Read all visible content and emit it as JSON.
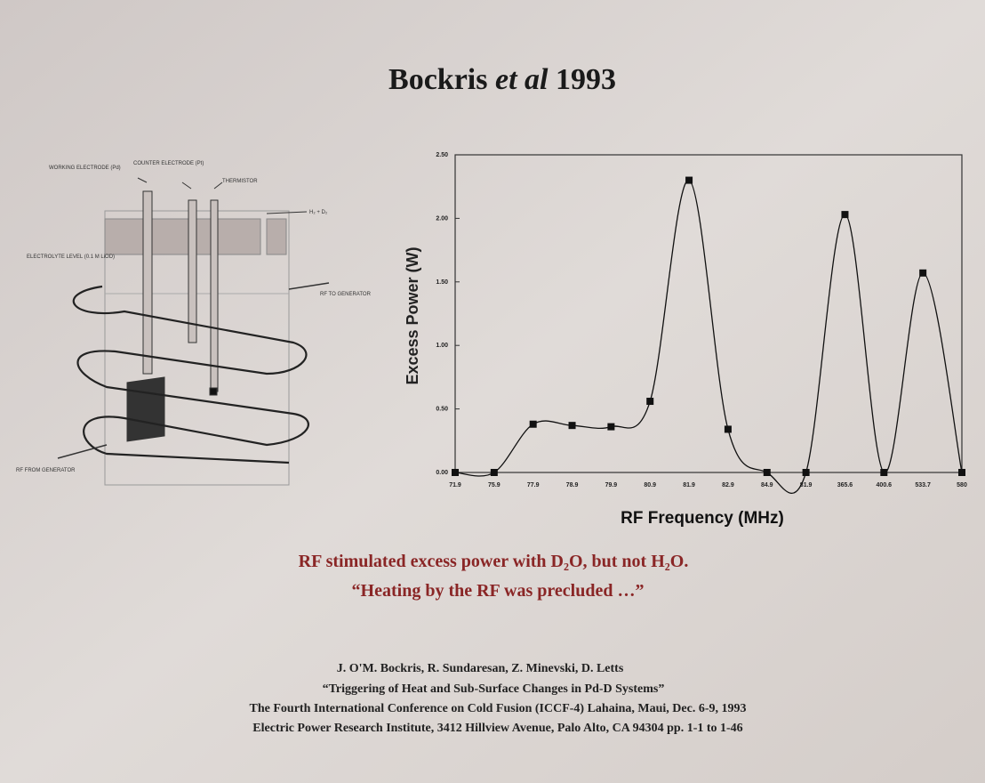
{
  "slide": {
    "title": {
      "name": "Bockris",
      "italic": "et al",
      "year": "1993"
    },
    "caption": [
      "RF stimulated excess power with D₂O, but not H₂O.",
      "“Heating by the RF was precluded …”"
    ],
    "reference": [
      "J. O'M. Bockris, R. Sundaresan, Z. Minevski, D. Letts",
      "“Triggering of Heat and Sub-Surface Changes in Pd-D Systems”",
      "The Fourth International Conference on Cold Fusion (ICCF-4) Lahaina, Maui, Dec. 6-9, 1993",
      "Electric Power Research Institute, 3412 Hillview Avenue, Palo Alto, CA 94304 pp. 1-1 to 1-46"
    ]
  },
  "diagram": {
    "labels": [
      "WORKING ELECTRODE (Pd)",
      "COUNTER ELECTRODE (Pt)",
      "THERMISTOR",
      "H₂ + D₂",
      "ELECTROLYTE LEVEL (0.1 M LiOD)",
      "RF TO GENERATOR",
      "RF FROM GENERATOR"
    ]
  },
  "chart_data": {
    "type": "line",
    "x_label": "RF Frequency (MHz)",
    "y_label": "Excess Power (W)",
    "categories": [
      "71.9",
      "75.9",
      "77.9",
      "78.9",
      "79.9",
      "80.9",
      "81.9",
      "82.9",
      "84.9",
      "81.9",
      "365.6",
      "400.6",
      "533.7",
      "580"
    ],
    "values": [
      0,
      0,
      0.38,
      0.37,
      0.36,
      0.56,
      2.3,
      0.34,
      0,
      0,
      2.03,
      0,
      1.57,
      0
    ],
    "color": "#111111",
    "ylim": [
      0,
      2.5
    ],
    "yticks": [
      {
        "value": 0,
        "label": "0.00"
      },
      {
        "value": 0.5,
        "label": "0.50"
      },
      {
        "value": 1,
        "label": "1.00"
      },
      {
        "value": 1.5,
        "label": "1.50"
      },
      {
        "value": 2,
        "label": "2.00"
      },
      {
        "value": 2.5,
        "label": "2.50"
      }
    ]
  }
}
